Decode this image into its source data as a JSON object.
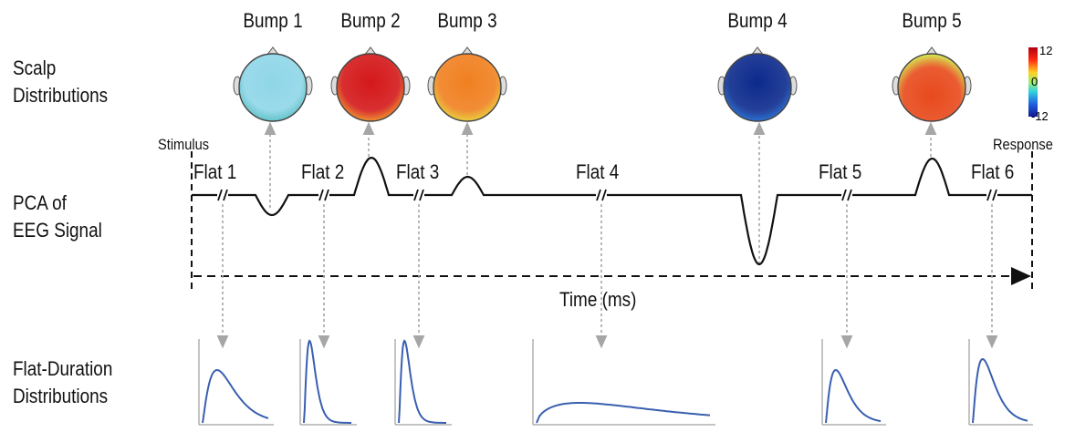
{
  "row_labels": {
    "scalp_line1": "Scalp",
    "scalp_line2": "Distributions",
    "pca_line1": "PCA of",
    "pca_line2": "EEG Signal",
    "flat_line1": "Flat-Duration",
    "flat_line2": "Distributions"
  },
  "endpoints": {
    "stimulus": "Stimulus",
    "response": "Response"
  },
  "axis": {
    "time_label": "Time (ms)"
  },
  "colorbar": {
    "max": "12",
    "mid": "0",
    "min": "-12"
  },
  "bumps": [
    {
      "label": "Bump 1",
      "polarity": -1,
      "center": "#8fd6e8",
      "edge": "#5cc0c4"
    },
    {
      "label": "Bump 2",
      "polarity": 1,
      "center": "#d4181a",
      "edge": "#f0a030"
    },
    {
      "label": "Bump 3",
      "polarity": 1,
      "center": "#f08020",
      "edge": "#e8d840"
    },
    {
      "label": "Bump 4",
      "polarity": -1,
      "center": "#0c2a8c",
      "edge": "#2e78d8"
    },
    {
      "label": "Bump 5",
      "polarity": 1,
      "center": "#e84a1c",
      "edge": "#d8e050"
    }
  ],
  "flats": [
    "Flat 1",
    "Flat 2",
    "Flat 3",
    "Flat 4",
    "Flat 5",
    "Flat 6"
  ],
  "colors": {
    "curve": "#3a5fb0",
    "arrow": "#a6a6a6",
    "signal": "#111111"
  }
}
